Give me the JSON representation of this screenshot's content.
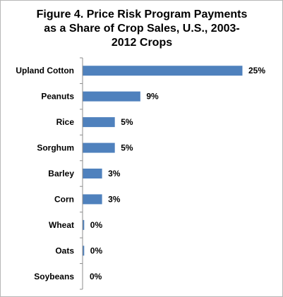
{
  "chart_data": {
    "type": "bar",
    "orientation": "horizontal",
    "title_lines": [
      "Figure 4.  Price Risk Program Payments",
      "as a Share of Crop Sales, U.S., 2003-",
      "2012 Crops"
    ],
    "categories": [
      "Upland Cotton",
      "Peanuts",
      "Rice",
      "Sorghum",
      "Barley",
      "Corn",
      "Wheat",
      "Oats",
      "Soybeans"
    ],
    "values": [
      25,
      9,
      5,
      5,
      3,
      3,
      0.2,
      0.2,
      0
    ],
    "value_labels": [
      "25%",
      "9%",
      "5%",
      "5%",
      "3%",
      "3%",
      "0%",
      "0%",
      "0%"
    ],
    "xlim": [
      0,
      25
    ],
    "bar_color": "#4f81bd",
    "grid": false,
    "legend": "none"
  }
}
